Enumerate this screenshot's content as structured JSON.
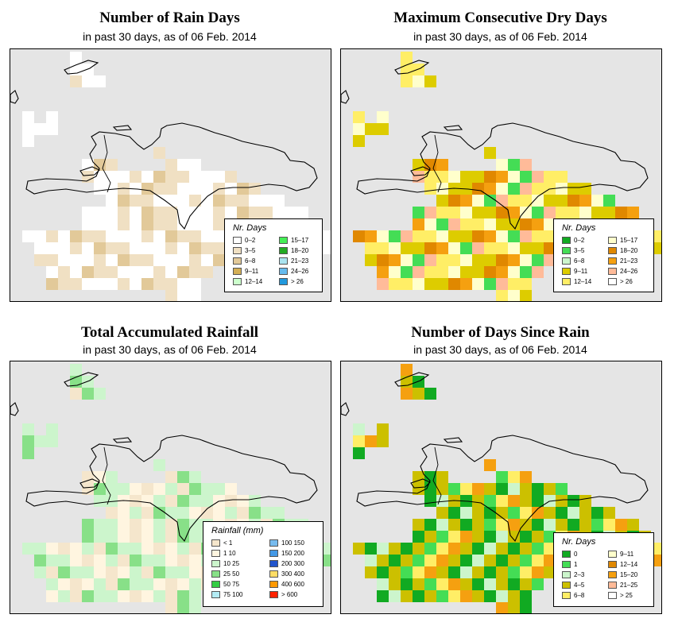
{
  "panels": [
    {
      "title": "Number of Rain Days",
      "subtitle": "in past 30 days, as of  06 Feb. 2014",
      "legend": {
        "title": "Nr. Days",
        "items": [
          {
            "label": "0–2",
            "color": "#ffffff"
          },
          {
            "label": "3–5",
            "color": "#f0e0c3"
          },
          {
            "label": "6–8",
            "color": "#e2c999"
          },
          {
            "label": "9–11",
            "color": "#d4af55"
          },
          {
            "label": "12–14",
            "color": "#ccffcc"
          },
          {
            "label": "15–17",
            "color": "#44ee55"
          },
          {
            "label": "18–20",
            "color": "#22aa22"
          },
          {
            "label": "21–23",
            "color": "#aae4f0"
          },
          {
            "label": "24–26",
            "color": "#66bbee"
          },
          {
            "label": "> 26",
            "color": "#2299dd"
          }
        ]
      }
    },
    {
      "title": "Maximum Consecutive Dry Days",
      "subtitle": "in past 30 days, as of  06 Feb. 2014",
      "legend": {
        "title": "Nr. Days",
        "items": [
          {
            "label": "0–2",
            "color": "#11aa22"
          },
          {
            "label": "3–5",
            "color": "#44dd55"
          },
          {
            "label": "6–8",
            "color": "#ccf5cc"
          },
          {
            "label": "9–11",
            "color": "#ddcc00"
          },
          {
            "label": "12–14",
            "color": "#ffee66"
          },
          {
            "label": "15–17",
            "color": "#ffffcc"
          },
          {
            "label": "18–20",
            "color": "#e08800"
          },
          {
            "label": "21–23",
            "color": "#f5a010"
          },
          {
            "label": "24–26",
            "color": "#ffbb99"
          },
          {
            "label": "> 26",
            "color": "#ffffff"
          }
        ]
      }
    },
    {
      "title": "Total Accumulated Rainfall",
      "subtitle": "in past 30 days, as of  06 Feb. 2014",
      "legend": {
        "title": "Rainfall (mm)",
        "items": [
          {
            "label": "< 1",
            "color": "#f5e6cc"
          },
          {
            "label": "1    10",
            "color": "#fff5e0"
          },
          {
            "label": "10    25",
            "color": "#ccf5cc"
          },
          {
            "label": "25    50",
            "color": "#88e088"
          },
          {
            "label": "50    75",
            "color": "#33cc44"
          },
          {
            "label": "75   100",
            "color": "#b4ecf5"
          },
          {
            "label": "100   150",
            "color": "#77bbee"
          },
          {
            "label": "150   200",
            "color": "#4499e6"
          },
          {
            "label": "200   300",
            "color": "#2255cc"
          },
          {
            "label": "300   400",
            "color": "#ffdd66"
          },
          {
            "label": "400   600",
            "color": "#ff9900"
          },
          {
            "label": "> 600",
            "color": "#ff2200"
          }
        ]
      }
    },
    {
      "title": "Number of Days Since Rain",
      "subtitle": "in past 30 days, as of  06 Feb. 2014",
      "legend": {
        "title": "Nr. Days",
        "items": [
          {
            "label": "0",
            "color": "#11aa22"
          },
          {
            "label": "1",
            "color": "#44dd55"
          },
          {
            "label": "2–3",
            "color": "#ccf5cc"
          },
          {
            "label": "4–5",
            "color": "#ccc000"
          },
          {
            "label": "6–8",
            "color": "#ffee66"
          },
          {
            "label": "9–11",
            "color": "#ffffcc"
          },
          {
            "label": "12–14",
            "color": "#e08800"
          },
          {
            "label": "15–20",
            "color": "#f5a010"
          },
          {
            "label": "21–25",
            "color": "#ffbb99"
          },
          {
            "label": "> 25",
            "color": "#ffffff"
          }
        ]
      }
    }
  ]
}
